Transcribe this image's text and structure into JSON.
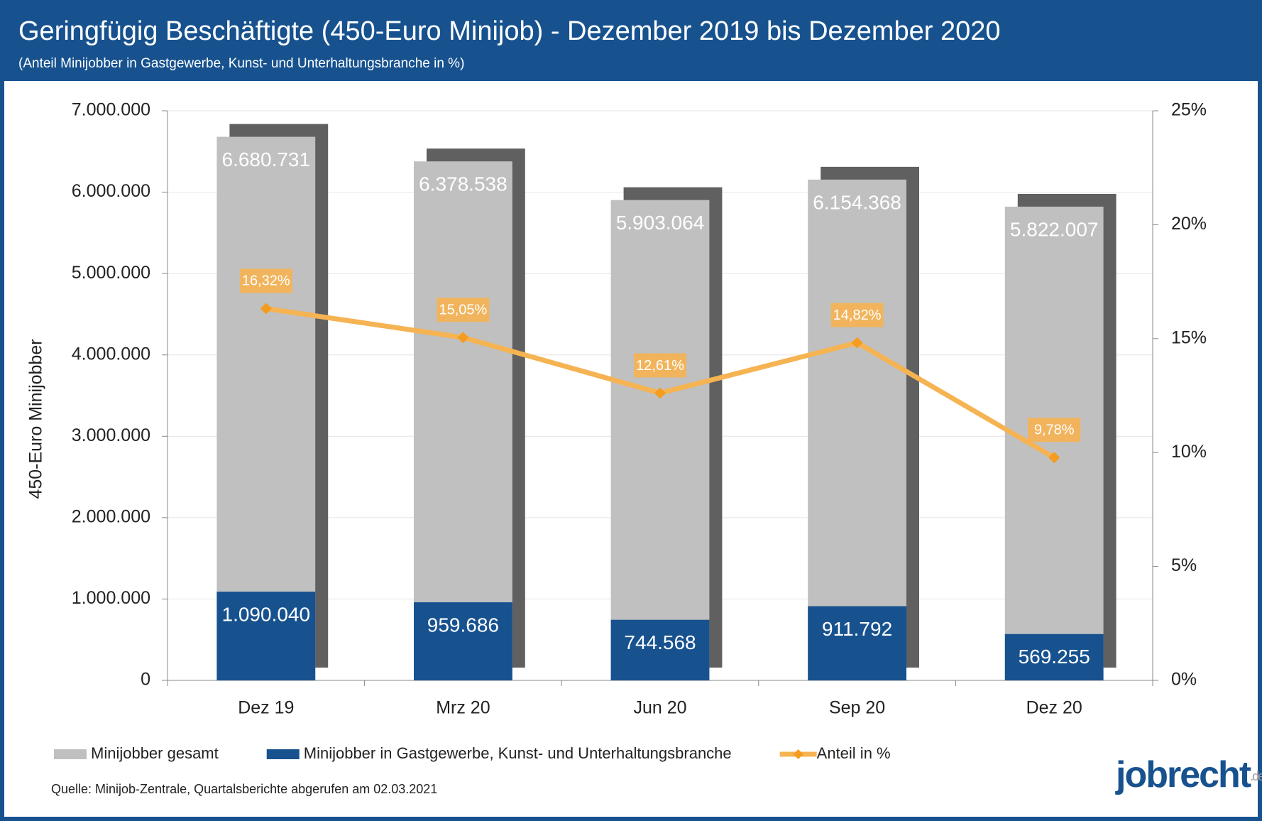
{
  "chart_data": {
    "type": "bar",
    "title": "Geringfügig Beschäftigte (450-Euro Minijob) - Dezember 2019 bis Dezember 2020",
    "subtitle": "(Anteil Minijobber in Gastgewerbe, Kunst- und Unterhaltungsbranche in %)",
    "y_label": "450-Euro Minijobber",
    "categories": [
      "Dez 19",
      "Mrz 20",
      "Jun 20",
      "Sep 20",
      "Dez 20"
    ],
    "series": [
      {
        "name": "Minijobber gesamt",
        "color": "#c0c0c0",
        "values": [
          6680731,
          6378538,
          5903064,
          6154368,
          5822007
        ],
        "value_labels": [
          "6.680.731",
          "6.378.538",
          "5.903.064",
          "6.154.368",
          "5.822.007"
        ]
      },
      {
        "name": "Minijobber in Gastgewerbe, Kunst- und Unterhaltungsbranche",
        "color": "#17528f",
        "values": [
          1090040,
          959686,
          744568,
          911792,
          569255
        ],
        "value_labels": [
          "1.090.040",
          "959.686",
          "744.568",
          "911.792",
          "569.255"
        ]
      },
      {
        "name": "Anteil in %",
        "color": "#f6b352",
        "marker_color": "#f39c1f",
        "type": "line",
        "axis": "y2",
        "values": [
          16.32,
          15.05,
          12.61,
          14.82,
          9.78
        ],
        "value_labels": [
          "16,32%",
          "15,05%",
          "12,61%",
          "14,82%",
          "9,78%"
        ]
      }
    ],
    "shadow_color": "#606060",
    "ylim": [
      0,
      7000000
    ],
    "yticks": [
      0,
      {
        "value": 1000000,
        "label": "1.000.000"
      },
      {
        "value": 2000000,
        "label": "2.000.000"
      },
      {
        "value": 3000000,
        "label": "3.000.000"
      },
      {
        "value": 4000000,
        "label": "4.000.000"
      },
      {
        "value": 5000000,
        "label": "5.000.000"
      },
      {
        "value": 6000000,
        "label": "6.000.000"
      },
      {
        "value": 7000000,
        "label": "7.000.000"
      }
    ],
    "y2lim": [
      0,
      25
    ],
    "y2ticks": [
      {
        "value": 0,
        "label": "0%"
      },
      {
        "value": 5,
        "label": "5%"
      },
      {
        "value": 10,
        "label": "10%"
      },
      {
        "value": 15,
        "label": "15%"
      },
      {
        "value": 20,
        "label": "20%"
      },
      {
        "value": 25,
        "label": "25%"
      }
    ],
    "grid": true,
    "source": "Quelle: Minijob-Zentrale, Quartalsberichte abgerufen am 02.03.2021",
    "logo": "jobrecht",
    "logo_suffix": ".de"
  }
}
